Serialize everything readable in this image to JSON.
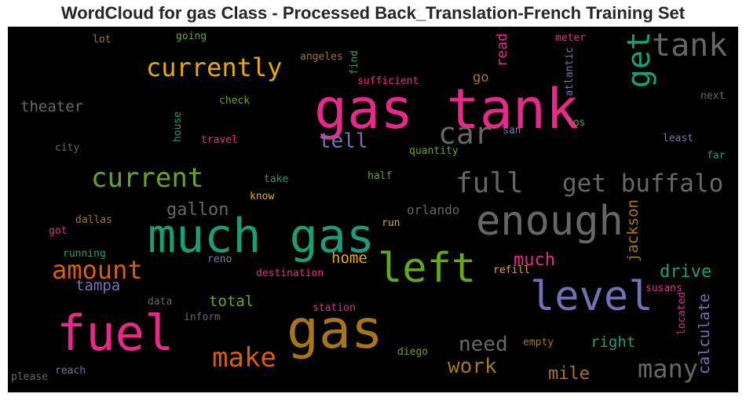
{
  "title": "WordCloud for gas Class - Processed Back_Translation-French Training Set",
  "colors": {
    "pink": "#e7298a",
    "green": "#1b9e77",
    "gray": "#666666",
    "purple": "#7570b3",
    "orange": "#d95f02",
    "olive": "#66a61e",
    "gold": "#e6ab02",
    "brown": "#a6761d"
  },
  "words": [
    {
      "text": "gas tank",
      "color": "#e7298a"
    },
    {
      "text": "much gas",
      "color": "#1b9e77"
    },
    {
      "text": "gas",
      "color": "#a6761d"
    },
    {
      "text": "fuel",
      "color": "#e7298a"
    },
    {
      "text": "enough",
      "color": "#666666"
    },
    {
      "text": "left",
      "color": "#66a61e"
    },
    {
      "text": "level",
      "color": "#7570b3"
    },
    {
      "text": "tank",
      "color": "#666666"
    },
    {
      "text": "get",
      "color": "#1b9e77"
    },
    {
      "text": "currently",
      "color": "#e6ab02"
    },
    {
      "text": "current",
      "color": "#66a61e"
    },
    {
      "text": "car",
      "color": "#666666"
    },
    {
      "text": "full",
      "color": "#666666"
    },
    {
      "text": "get buffalo",
      "color": "#666666"
    },
    {
      "text": "amount",
      "color": "#d95f02"
    },
    {
      "text": "make",
      "color": "#d95f02"
    },
    {
      "text": "many",
      "color": "#666666"
    },
    {
      "text": "tell",
      "color": "#7570b3"
    },
    {
      "text": "need",
      "color": "#666666"
    },
    {
      "text": "work",
      "color": "#a6761d"
    },
    {
      "text": "gallon",
      "color": "#666666"
    },
    {
      "text": "drive",
      "color": "#1b9e77"
    },
    {
      "text": "much",
      "color": "#e7298a"
    },
    {
      "text": "mile",
      "color": "#a6761d"
    },
    {
      "text": "theater",
      "color": "#666666"
    },
    {
      "text": "orlando",
      "color": "#666666"
    },
    {
      "text": "total",
      "color": "#66a61e"
    },
    {
      "text": "home",
      "color": "#e6ab02"
    },
    {
      "text": "tampa",
      "color": "#7570b3"
    },
    {
      "text": "right",
      "color": "#1b9e77"
    },
    {
      "text": "jackson",
      "color": "#a6761d"
    },
    {
      "text": "calculate",
      "color": "#7570b3"
    },
    {
      "text": "read",
      "color": "#e7298a"
    },
    {
      "text": "go",
      "color": "#a6761d"
    },
    {
      "text": "check",
      "color": "#66a61e"
    },
    {
      "text": "sufficient",
      "color": "#e7298a"
    },
    {
      "text": "going",
      "color": "#66a61e"
    },
    {
      "text": "lot",
      "color": "#a6761d"
    },
    {
      "text": "angeles",
      "color": "#a6761d"
    },
    {
      "text": "find",
      "color": "#1b9e77"
    },
    {
      "text": "meter",
      "color": "#e7298a"
    },
    {
      "text": "atlantic",
      "color": "#7570b3"
    },
    {
      "text": "next",
      "color": "#666666"
    },
    {
      "text": "los",
      "color": "#66a61e"
    },
    {
      "text": "san",
      "color": "#7570b3"
    },
    {
      "text": "least",
      "color": "#7570b3"
    },
    {
      "text": "far",
      "color": "#1b9e77"
    },
    {
      "text": "city",
      "color": "#666666"
    },
    {
      "text": "house",
      "color": "#1b9e77"
    },
    {
      "text": "travel",
      "color": "#e7298a"
    },
    {
      "text": "quantity",
      "color": "#66a61e"
    },
    {
      "text": "take",
      "color": "#1b9e77"
    },
    {
      "text": "half",
      "color": "#66a61e"
    },
    {
      "text": "know",
      "color": "#e6ab02"
    },
    {
      "text": "dallas",
      "color": "#a6761d"
    },
    {
      "text": "got",
      "color": "#e7298a"
    },
    {
      "text": "run",
      "color": "#e6ab02"
    },
    {
      "text": "running",
      "color": "#1b9e77"
    },
    {
      "text": "reno",
      "color": "#7570b3"
    },
    {
      "text": "destination",
      "color": "#e7298a"
    },
    {
      "text": "refill",
      "color": "#e6ab02"
    },
    {
      "text": "susans",
      "color": "#e7298a"
    },
    {
      "text": "located",
      "color": "#e7298a"
    },
    {
      "text": "data",
      "color": "#666666"
    },
    {
      "text": "inform",
      "color": "#666666"
    },
    {
      "text": "station",
      "color": "#e7298a"
    },
    {
      "text": "empty",
      "color": "#a6761d"
    },
    {
      "text": "diego",
      "color": "#66a61e"
    },
    {
      "text": "reach",
      "color": "#7570b3"
    },
    {
      "text": "please",
      "color": "#666666"
    }
  ]
}
